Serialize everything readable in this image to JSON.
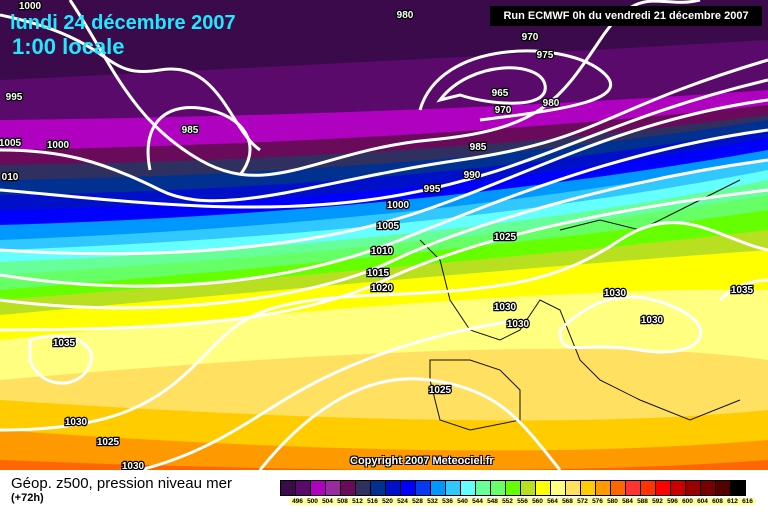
{
  "header": {
    "date": "lundi 24 décembre 2007",
    "local_time": "1:00 locale",
    "run": "Run ECMWF 0h du vendredi 21 décembre 2007"
  },
  "copyright": "Copyright 2007 Meteociel.fr",
  "footer": {
    "title": "Géop. z500, pression niveau mer",
    "subtitle": "(+72h)"
  },
  "colorbar": {
    "labels": [
      "496",
      "500",
      "504",
      "508",
      "512",
      "516",
      "520",
      "524",
      "528",
      "532",
      "536",
      "540",
      "544",
      "548",
      "552",
      "556",
      "560",
      "564",
      "568",
      "572",
      "576",
      "580",
      "584",
      "588",
      "592",
      "596",
      "600",
      "604",
      "608",
      "612",
      "616"
    ],
    "colors": [
      "#3a0a4a",
      "#5a0a6a",
      "#b000c0",
      "#9a2aa0",
      "#6a0a5a",
      "#303060",
      "#003090",
      "#0010c8",
      "#0000ff",
      "#0838f0",
      "#0098ff",
      "#30c8ff",
      "#66ffff",
      "#66ff99",
      "#66ff66",
      "#66ff00",
      "#b8e020",
      "#ffff00",
      "#ffff80",
      "#ffe060",
      "#ffcc00",
      "#ff9900",
      "#ff6600",
      "#ff3333",
      "#ff3300",
      "#ff0000",
      "#cc0000",
      "#990000",
      "#770000",
      "#550000",
      "#000000"
    ]
  },
  "isobar_labels": [
    "1000",
    "980",
    "970",
    "975",
    "965",
    "970",
    "980",
    "995",
    "985",
    "1005",
    "1000",
    "010",
    "985",
    "990",
    "995",
    "1000",
    "1005",
    "1010",
    "1015",
    "1020",
    "1025",
    "1030",
    "1030",
    "1030",
    "1030",
    "1035",
    "1035",
    "1025",
    "1030",
    "1025",
    "1030"
  ]
}
